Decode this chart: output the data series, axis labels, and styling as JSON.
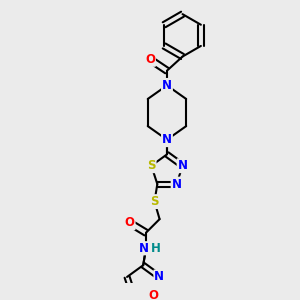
{
  "bg_color": "#ebebeb",
  "bond_color": "#000000",
  "bond_width": 1.5,
  "atom_colors": {
    "N": "#0000ff",
    "O": "#ff0000",
    "S": "#b8b800",
    "H": "#008b8b",
    "C": "#000000"
  },
  "font_size_atoms": 8.5
}
